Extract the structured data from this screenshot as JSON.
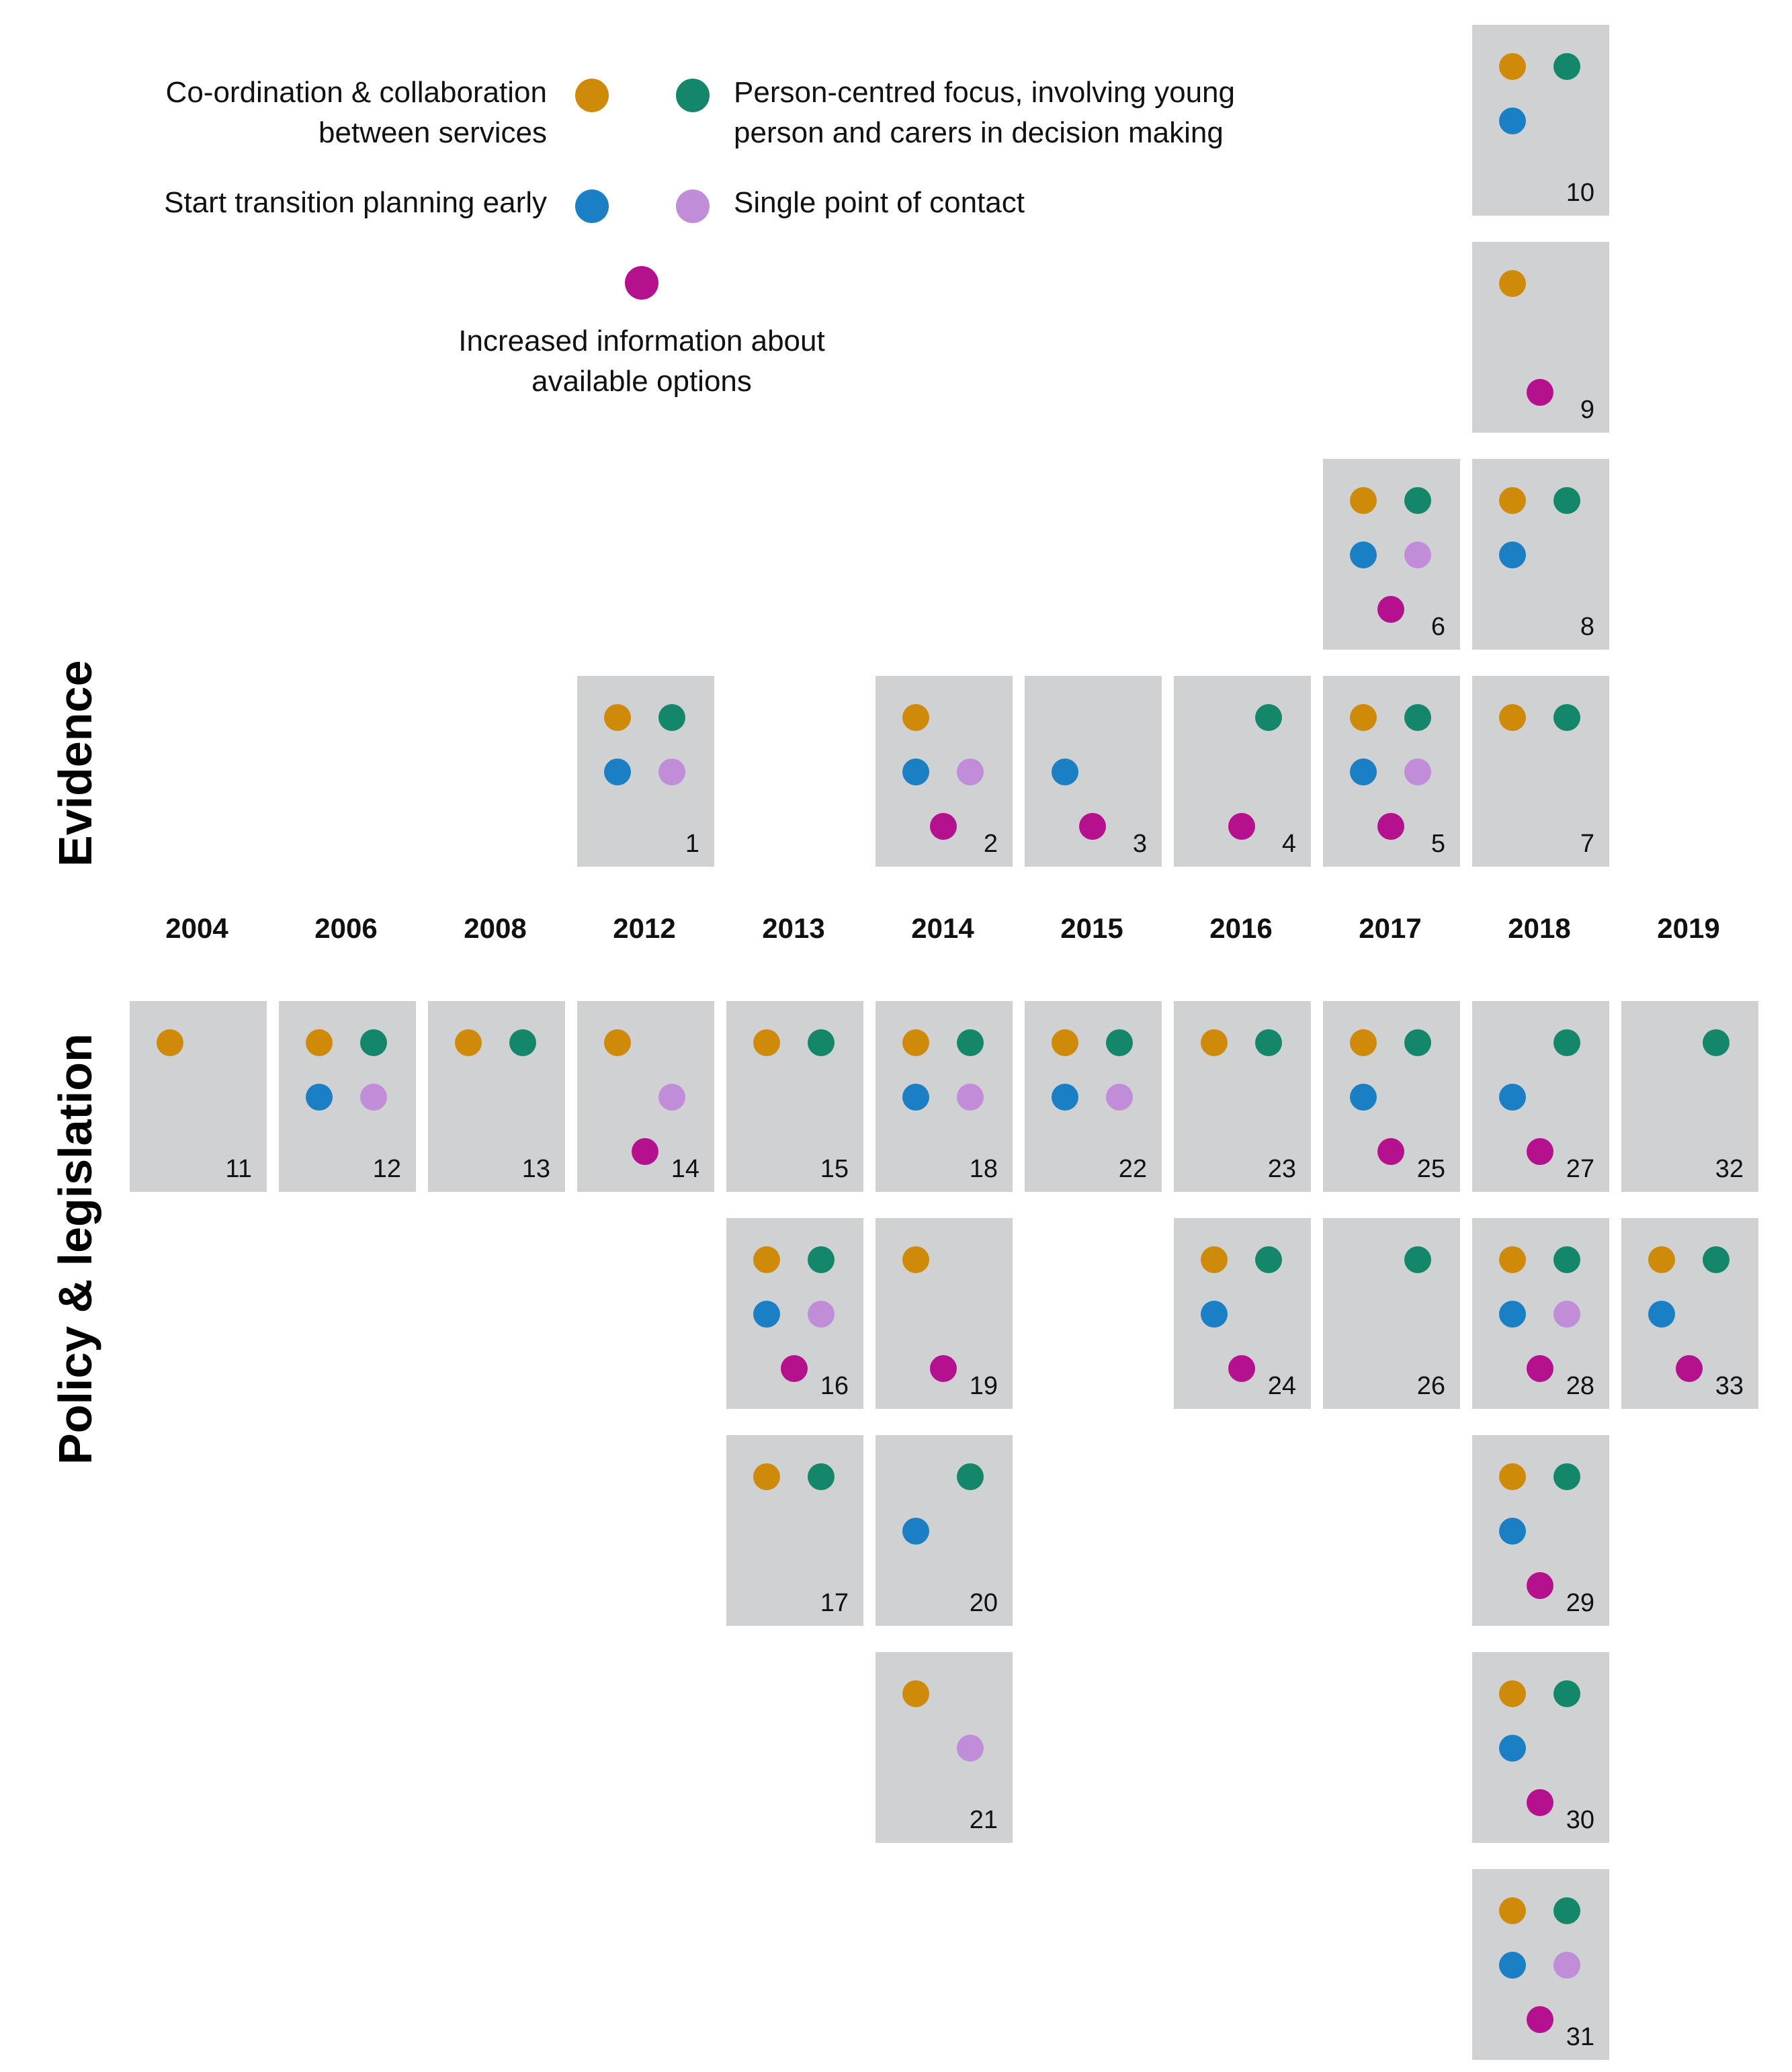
{
  "categories": {
    "coord": {
      "color": "#d08a0a"
    },
    "person": {
      "color": "#14876b"
    },
    "early": {
      "color": "#1a7fc4"
    },
    "single": {
      "color": "#c18cd8"
    },
    "info": {
      "color": "#b5118f"
    }
  },
  "legend": {
    "coord_line1": "Co-ordination & collaboration",
    "coord_line2": "between services",
    "person_line1": "Person-centred focus, involving young",
    "person_line2": "person and carers in decision making",
    "early": "Start transition planning early",
    "single": "Single point of contact",
    "info_line1": "Increased information about",
    "info_line2": "available options"
  },
  "sections": {
    "evidence": "Evidence",
    "policy": "Policy & legislation"
  },
  "years": [
    "2004",
    "2006",
    "2008",
    "2012",
    "2013",
    "2014",
    "2015",
    "2016",
    "2017",
    "2018",
    "2019"
  ],
  "evidence_items": [
    {
      "id": "1",
      "year": "2012",
      "stack": 0,
      "cats": [
        "coord",
        "person",
        "early",
        "single"
      ]
    },
    {
      "id": "2",
      "year": "2014",
      "stack": 0,
      "cats": [
        "coord",
        "early",
        "single",
        "info"
      ]
    },
    {
      "id": "3",
      "year": "2015",
      "stack": 0,
      "cats": [
        "early",
        "info"
      ]
    },
    {
      "id": "4",
      "year": "2016",
      "stack": 0,
      "cats": [
        "person",
        "info"
      ]
    },
    {
      "id": "5",
      "year": "2017",
      "stack": 0,
      "cats": [
        "coord",
        "person",
        "early",
        "single",
        "info"
      ]
    },
    {
      "id": "6",
      "year": "2017",
      "stack": 1,
      "cats": [
        "coord",
        "person",
        "early",
        "single",
        "info"
      ]
    },
    {
      "id": "7",
      "year": "2018",
      "stack": 0,
      "cats": [
        "coord",
        "person"
      ]
    },
    {
      "id": "8",
      "year": "2018",
      "stack": 1,
      "cats": [
        "coord",
        "person",
        "early"
      ]
    },
    {
      "id": "9",
      "year": "2018",
      "stack": 2,
      "cats": [
        "coord",
        "info"
      ]
    },
    {
      "id": "10",
      "year": "2018",
      "stack": 3,
      "cats": [
        "coord",
        "person",
        "early"
      ]
    }
  ],
  "policy_items": [
    {
      "id": "11",
      "year": "2004",
      "stack": 0,
      "cats": [
        "coord"
      ]
    },
    {
      "id": "12",
      "year": "2006",
      "stack": 0,
      "cats": [
        "coord",
        "person",
        "early",
        "single"
      ]
    },
    {
      "id": "13",
      "year": "2008",
      "stack": 0,
      "cats": [
        "coord",
        "person"
      ]
    },
    {
      "id": "14",
      "year": "2012",
      "stack": 0,
      "cats": [
        "coord",
        "single",
        "info"
      ]
    },
    {
      "id": "15",
      "year": "2013",
      "stack": 0,
      "cats": [
        "coord",
        "person"
      ]
    },
    {
      "id": "16",
      "year": "2013",
      "stack": 1,
      "cats": [
        "coord",
        "person",
        "early",
        "single",
        "info"
      ]
    },
    {
      "id": "17",
      "year": "2013",
      "stack": 2,
      "cats": [
        "coord",
        "person"
      ]
    },
    {
      "id": "18",
      "year": "2014",
      "stack": 0,
      "cats": [
        "coord",
        "person",
        "early",
        "single"
      ]
    },
    {
      "id": "19",
      "year": "2014",
      "stack": 1,
      "cats": [
        "coord",
        "info"
      ]
    },
    {
      "id": "20",
      "year": "2014",
      "stack": 2,
      "cats": [
        "person",
        "early"
      ]
    },
    {
      "id": "21",
      "year": "2014",
      "stack": 3,
      "cats": [
        "coord",
        "single"
      ]
    },
    {
      "id": "22",
      "year": "2015",
      "stack": 0,
      "cats": [
        "coord",
        "person",
        "early",
        "single"
      ]
    },
    {
      "id": "23",
      "year": "2016",
      "stack": 0,
      "cats": [
        "coord",
        "person"
      ]
    },
    {
      "id": "24",
      "year": "2016",
      "stack": 1,
      "cats": [
        "coord",
        "person",
        "early",
        "info"
      ]
    },
    {
      "id": "25",
      "year": "2017",
      "stack": 0,
      "cats": [
        "coord",
        "person",
        "early",
        "info"
      ]
    },
    {
      "id": "26",
      "year": "2017",
      "stack": 1,
      "cats": [
        "person"
      ]
    },
    {
      "id": "27",
      "year": "2018",
      "stack": 0,
      "cats": [
        "person",
        "early",
        "info"
      ]
    },
    {
      "id": "28",
      "year": "2018",
      "stack": 1,
      "cats": [
        "coord",
        "person",
        "early",
        "single",
        "info"
      ]
    },
    {
      "id": "29",
      "year": "2018",
      "stack": 2,
      "cats": [
        "coord",
        "person",
        "early",
        "info"
      ]
    },
    {
      "id": "30",
      "year": "2018",
      "stack": 3,
      "cats": [
        "coord",
        "person",
        "early",
        "info"
      ]
    },
    {
      "id": "31",
      "year": "2018",
      "stack": 4,
      "cats": [
        "coord",
        "person",
        "early",
        "single",
        "info"
      ]
    },
    {
      "id": "32",
      "year": "2019",
      "stack": 0,
      "cats": [
        "person"
      ]
    },
    {
      "id": "33",
      "year": "2019",
      "stack": 1,
      "cats": [
        "coord",
        "person",
        "early",
        "info"
      ]
    }
  ]
}
